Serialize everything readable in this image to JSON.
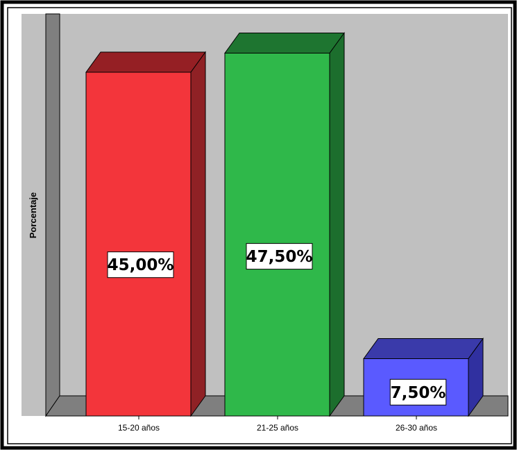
{
  "chart_data": {
    "type": "bar",
    "style": "3d",
    "ylabel": "Porcentaje",
    "xlabel": "",
    "categories": [
      "15-20 años",
      "21-25 años",
      "26-30 años"
    ],
    "values": [
      45.0,
      47.5,
      7.5
    ],
    "data_labels": [
      "45,00%",
      "47,50%",
      "7,50%"
    ],
    "ylim": [
      0,
      50
    ],
    "grid": false,
    "legend": "none",
    "colors": {
      "bars": [
        "#f3353b",
        "#2fb84a",
        "#5a5aff"
      ],
      "bar_tops": [
        "#951f24",
        "#1e7530",
        "#3a3aaa"
      ],
      "bar_sides": [
        "#8f2125",
        "#1c6e2d",
        "#3030a0"
      ],
      "plot_background": "#c0c0c0",
      "wall": "#7f7f7f",
      "floor": "#7f7f7f",
      "frame": "#000000"
    }
  }
}
